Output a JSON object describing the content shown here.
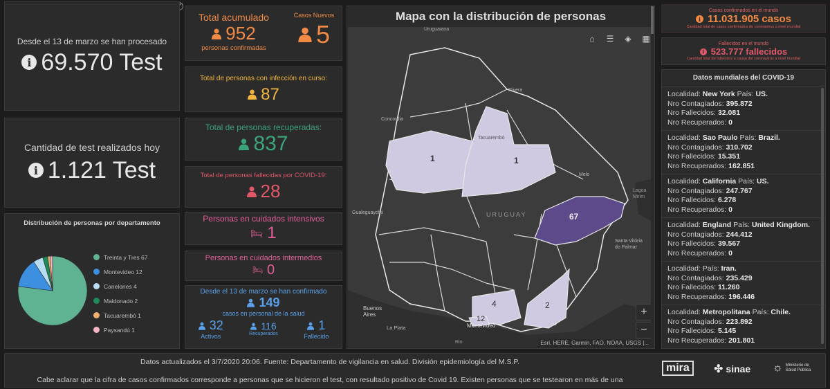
{
  "tests_total": {
    "caption": "Desde el 13 de marzo se han procesado",
    "value": "69.570 Test"
  },
  "tests_today": {
    "caption": "Cantidad de test realizados hoy",
    "value": "1.121 Test"
  },
  "pie": {
    "title": "Distribución de personas por departamento",
    "legend": [
      {
        "label": "Treinta y Tres  67",
        "color": "#5fb393"
      },
      {
        "label": "Montevideo  12",
        "color": "#3d8fe0"
      },
      {
        "label": "Canelones  4",
        "color": "#b8dcf2"
      },
      {
        "label": "Maldonado  2",
        "color": "#1e8a5a"
      },
      {
        "label": "Tacuarembó  1",
        "color": "#f0b070"
      },
      {
        "label": "Paysandú  1",
        "color": "#f5b5c5"
      }
    ]
  },
  "chart_data": {
    "type": "pie",
    "categories": [
      "Treinta y Tres",
      "Montevideo",
      "Canelones",
      "Maldonado",
      "Tacuarembó",
      "Paysandú"
    ],
    "values": [
      67,
      12,
      4,
      2,
      1,
      1
    ],
    "title": "Distribución de personas por departamento",
    "colors": [
      "#5fb393",
      "#3d8fe0",
      "#b8dcf2",
      "#1e8a5a",
      "#f0b070",
      "#f5b5c5"
    ],
    "legend": "right"
  },
  "acumulado": {
    "label": "Total acumulado",
    "value": "952",
    "sub": "personas confirmadas"
  },
  "nuevos": {
    "label": "Casos Nuevos",
    "value": "5"
  },
  "en_curso": {
    "label": "Total de personas con infección en curso:",
    "value": "87"
  },
  "recuperadas": {
    "label": "Total de personas recuperadas:",
    "value": "837"
  },
  "fallecidas": {
    "label": "Total de personas fallecidas por COVID-19:",
    "value": "28"
  },
  "intensivos": {
    "label": "Personas en cuidados intensivos",
    "value": "1"
  },
  "intermedios": {
    "label": "Personas en cuidados intermedios",
    "value": "0"
  },
  "salud": {
    "line1": "Desde el 13 de marzo se han confirmado",
    "value": "149",
    "line2": "casos en personal de la salud",
    "activos_value": "32",
    "activos_label": "Activos",
    "recuperados_value": "116",
    "recuperados_label": "Recuperados",
    "fallecido_value": "1",
    "fallecido_label": "Fallecido"
  },
  "map": {
    "title": "Mapa con la distribución de personas",
    "country_label": "URUGUAY",
    "attribution": "Esri, HERE, Garmin, FAO, NOAA, USGS |...",
    "places": [
      "Uruguaiana",
      "Rivera",
      "Concordia",
      "Tacuarembó",
      "Melo",
      "Gualeguaychú",
      "Buenos Aires",
      "La Plata",
      "Montevideo",
      "Santa Vitória do Palmar",
      "Lagoa Mirim",
      "Rio"
    ],
    "counts": [
      {
        "dept": "Paysandú",
        "value": "1"
      },
      {
        "dept": "Tacuarembó",
        "value": "1"
      },
      {
        "dept": "Treinta y Tres",
        "value": "67"
      },
      {
        "dept": "Canelones",
        "value": "4"
      },
      {
        "dept": "Maldonado",
        "value": "2"
      },
      {
        "dept": "Montevideo",
        "value": "12"
      }
    ],
    "zoom_in": "+",
    "zoom_out": "−"
  },
  "world_cases": {
    "label": "Casos confirmados en el mundo",
    "value": "11.031.905 casos",
    "sub": "Cantidad total de casos confirmados de coronavirus a nivel mundial"
  },
  "world_deaths": {
    "label": "Fallecidos en el mundo",
    "value": "523.777 fallecidos",
    "sub": "Cantidad total de fallecidos a causa del coronavirus a nivel mundial"
  },
  "world_list": {
    "title": "Datos mundiales del COVID-19",
    "items": [
      {
        "loc": "New York",
        "pais": "US.",
        "contagiados": "395.872",
        "fallecidos": "32.081",
        "recuperados": "0"
      },
      {
        "loc": "Sao Paulo",
        "pais": "Brazil.",
        "contagiados": "310.702",
        "fallecidos": "15.351",
        "recuperados": "162.851"
      },
      {
        "loc": "California",
        "pais": "US.",
        "contagiados": "247.767",
        "fallecidos": "6.278",
        "recuperados": "0"
      },
      {
        "loc": "England",
        "pais": "United Kingdom.",
        "contagiados": "244.412",
        "fallecidos": "39.567",
        "recuperados": "0"
      },
      {
        "loc": "",
        "pais": "Iran.",
        "contagiados": "235.429",
        "fallecidos": "11.260",
        "recuperados": "196.446"
      },
      {
        "loc": "Metropolitana",
        "pais": "Chile.",
        "contagiados": "223.892",
        "fallecidos": "5.145",
        "recuperados": "201.801"
      }
    ],
    "label_localidad": "Localidad:",
    "label_pais": "País:",
    "label_contagiados": "Nro Contagiados:",
    "label_fallecidos": "Nro Fallecidos:",
    "label_recuperados": "Nro Recuperados:"
  },
  "footer": {
    "line1": "Datos actualizados el 3/7/2020 20:06. Fuente: Departamento de vigilancia en salud. División epidemiología del M.S.P.",
    "line2": "Cabe aclarar que la cifra de casos confirmados corresponde a personas que se hicieron el test, con resultado positivo de Covid 19. Existen personas que se testearon en más de una",
    "logo_mira": "mira",
    "logo_sinae": "sinae",
    "logo_msp": "Ministerio de Salud Pública"
  }
}
